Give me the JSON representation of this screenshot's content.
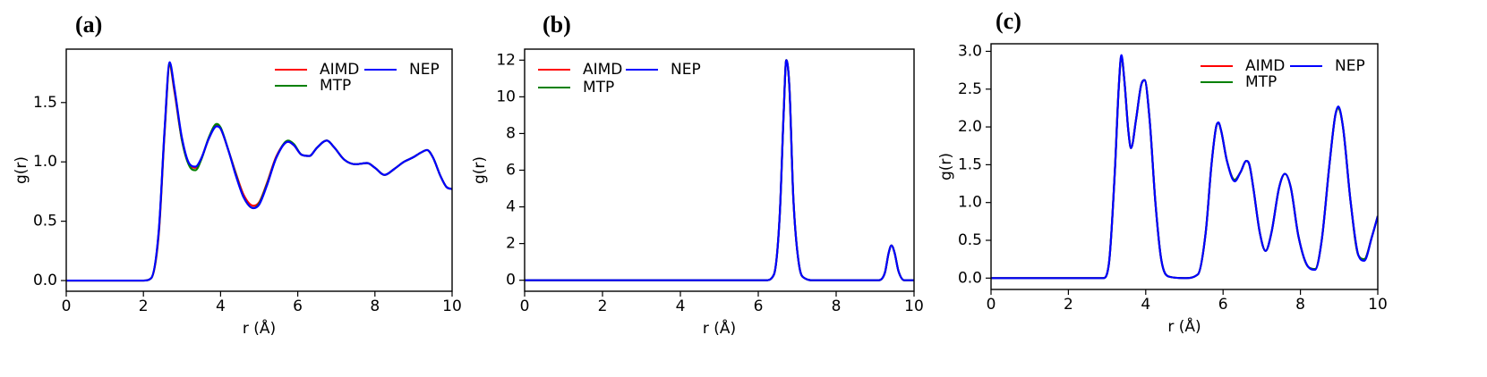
{
  "chart_data": [
    {
      "type": "line",
      "panel_label": "(a)",
      "xlabel": "r (Å)",
      "ylabel": "g(r)",
      "xlim": [
        0,
        10
      ],
      "ylim": [
        -0.09,
        1.95
      ],
      "xticks": [
        0,
        2,
        4,
        6,
        8,
        10
      ],
      "xtick_labels": [
        "0",
        "2",
        "4",
        "6",
        "8",
        "10"
      ],
      "yticks": [
        0.0,
        0.5,
        1.0,
        1.5
      ],
      "ytick_labels": [
        "0.0",
        "0.5",
        "1.0",
        "1.5"
      ],
      "grid": false,
      "legend_position": "top-right",
      "series": [
        {
          "name": "AIMD",
          "color": "#ff0000",
          "x": [
            0,
            2.0,
            2.2,
            2.4,
            2.55,
            2.68,
            2.8,
            3.0,
            3.2,
            3.35,
            3.5,
            3.7,
            3.9,
            4.0,
            4.2,
            4.4,
            4.6,
            4.85,
            5.0,
            5.2,
            5.45,
            5.75,
            5.9,
            6.1,
            6.3,
            6.5,
            6.75,
            6.95,
            7.2,
            7.5,
            7.8,
            8.0,
            8.25,
            8.5,
            8.75,
            9.0,
            9.2,
            9.35,
            9.5,
            9.7,
            9.85,
            10.0
          ],
          "y": [
            0,
            0.0,
            0.02,
            0.4,
            1.25,
            1.81,
            1.6,
            1.18,
            0.97,
            0.95,
            1.03,
            1.2,
            1.31,
            1.28,
            1.1,
            0.9,
            0.72,
            0.63,
            0.66,
            0.82,
            1.05,
            1.17,
            1.14,
            1.06,
            1.05,
            1.12,
            1.18,
            1.12,
            1.02,
            0.98,
            0.99,
            0.95,
            0.89,
            0.94,
            1.0,
            1.04,
            1.08,
            1.1,
            1.04,
            0.88,
            0.79,
            0.77
          ]
        },
        {
          "name": "MTP",
          "color": "#008000",
          "x": [
            0,
            2.0,
            2.2,
            2.4,
            2.55,
            2.68,
            2.8,
            3.0,
            3.2,
            3.35,
            3.5,
            3.7,
            3.9,
            4.0,
            4.2,
            4.4,
            4.6,
            4.85,
            5.0,
            5.2,
            5.45,
            5.75,
            5.9,
            6.1,
            6.3,
            6.5,
            6.75,
            6.95,
            7.2,
            7.5,
            7.8,
            8.0,
            8.25,
            8.5,
            8.75,
            9.0,
            9.2,
            9.35,
            9.5,
            9.7,
            9.85,
            10.0
          ],
          "y": [
            0,
            0.0,
            0.02,
            0.42,
            1.27,
            1.82,
            1.62,
            1.18,
            0.96,
            0.93,
            1.02,
            1.21,
            1.32,
            1.29,
            1.1,
            0.89,
            0.7,
            0.61,
            0.65,
            0.81,
            1.04,
            1.18,
            1.15,
            1.06,
            1.05,
            1.12,
            1.18,
            1.12,
            1.02,
            0.98,
            0.99,
            0.95,
            0.89,
            0.94,
            1.0,
            1.04,
            1.08,
            1.1,
            1.04,
            0.88,
            0.79,
            0.77
          ]
        },
        {
          "name": "NEP",
          "color": "#0000ff",
          "x": [
            0,
            2.0,
            2.2,
            2.4,
            2.55,
            2.68,
            2.8,
            3.0,
            3.2,
            3.35,
            3.5,
            3.7,
            3.9,
            4.0,
            4.2,
            4.4,
            4.6,
            4.85,
            5.0,
            5.2,
            5.45,
            5.75,
            5.9,
            6.1,
            6.3,
            6.5,
            6.75,
            6.95,
            7.2,
            7.5,
            7.8,
            8.0,
            8.25,
            8.5,
            8.75,
            9.0,
            9.2,
            9.35,
            9.5,
            9.7,
            9.85,
            10.0
          ],
          "y": [
            0,
            0.0,
            0.02,
            0.43,
            1.28,
            1.84,
            1.63,
            1.2,
            0.98,
            0.96,
            1.03,
            1.2,
            1.3,
            1.28,
            1.1,
            0.88,
            0.7,
            0.61,
            0.64,
            0.8,
            1.04,
            1.17,
            1.14,
            1.06,
            1.05,
            1.12,
            1.18,
            1.12,
            1.02,
            0.98,
            0.99,
            0.95,
            0.89,
            0.94,
            1.0,
            1.04,
            1.08,
            1.1,
            1.04,
            0.88,
            0.79,
            0.77
          ]
        }
      ]
    },
    {
      "type": "line",
      "panel_label": "(b)",
      "xlabel": "r (Å)",
      "ylabel": "g(r)",
      "xlim": [
        0,
        10
      ],
      "ylim": [
        -0.6,
        12.6
      ],
      "xticks": [
        0,
        2,
        4,
        6,
        8,
        10
      ],
      "xtick_labels": [
        "0",
        "2",
        "4",
        "6",
        "8",
        "10"
      ],
      "yticks": [
        0,
        2,
        4,
        6,
        8,
        10,
        12
      ],
      "ytick_labels": [
        "0",
        "2",
        "4",
        "6",
        "8",
        "10",
        "12"
      ],
      "grid": false,
      "legend_position": "top-left",
      "series": [
        {
          "name": "AIMD",
          "color": "#ff0000",
          "x": [
            0,
            6.2,
            6.4,
            6.55,
            6.65,
            6.72,
            6.8,
            6.9,
            7.05,
            7.2,
            7.4,
            9.1,
            9.25,
            9.35,
            9.42,
            9.5,
            9.6,
            9.75,
            10.0
          ],
          "y": [
            0,
            0.0,
            0.3,
            3.5,
            9.0,
            12.0,
            10.5,
            4.5,
            0.8,
            0.1,
            0.0,
            0.0,
            0.4,
            1.5,
            1.9,
            1.5,
            0.5,
            0.0,
            0.0
          ]
        },
        {
          "name": "MTP",
          "color": "#008000",
          "x": [
            0,
            6.2,
            6.4,
            6.55,
            6.65,
            6.72,
            6.8,
            6.9,
            7.05,
            7.2,
            7.4,
            9.1,
            9.25,
            9.35,
            9.42,
            9.5,
            9.6,
            9.75,
            10.0
          ],
          "y": [
            0,
            0.0,
            0.3,
            3.5,
            9.0,
            12.0,
            10.5,
            4.5,
            0.8,
            0.1,
            0.0,
            0.0,
            0.4,
            1.5,
            1.9,
            1.5,
            0.5,
            0.0,
            0.0
          ]
        },
        {
          "name": "NEP",
          "color": "#0000ff",
          "x": [
            0,
            6.2,
            6.4,
            6.55,
            6.65,
            6.72,
            6.8,
            6.9,
            7.05,
            7.2,
            7.4,
            9.1,
            9.25,
            9.35,
            9.42,
            9.5,
            9.6,
            9.75,
            10.0
          ],
          "y": [
            0,
            0.0,
            0.3,
            3.5,
            9.0,
            12.0,
            10.5,
            4.5,
            0.8,
            0.1,
            0.0,
            0.0,
            0.4,
            1.5,
            1.9,
            1.5,
            0.5,
            0.0,
            0.0
          ]
        }
      ]
    },
    {
      "type": "line",
      "panel_label": "(c)",
      "xlabel": "r (Å)",
      "ylabel": "g(r)",
      "xlim": [
        0,
        10
      ],
      "ylim": [
        -0.15,
        3.1
      ],
      "xticks": [
        0,
        2,
        4,
        6,
        8,
        10
      ],
      "xtick_labels": [
        "0",
        "2",
        "4",
        "6",
        "8",
        "10"
      ],
      "yticks": [
        0.0,
        0.5,
        1.0,
        1.5,
        2.0,
        2.5,
        3.0
      ],
      "ytick_labels": [
        "0.0",
        "0.5",
        "1.0",
        "1.5",
        "2.0",
        "2.5",
        "3.0"
      ],
      "grid": false,
      "legend_position": "top-right",
      "series": [
        {
          "name": "AIMD",
          "color": "#ff0000",
          "x": [
            0,
            2.9,
            3.05,
            3.2,
            3.3,
            3.37,
            3.45,
            3.55,
            3.62,
            3.75,
            3.88,
            3.97,
            4.1,
            4.25,
            4.4,
            4.6,
            5.0,
            5.35,
            5.55,
            5.7,
            5.82,
            5.88,
            5.95,
            6.1,
            6.3,
            6.45,
            6.6,
            6.68,
            6.78,
            6.95,
            7.1,
            7.25,
            7.45,
            7.6,
            7.75,
            7.95,
            8.2,
            8.38,
            8.55,
            8.75,
            8.9,
            8.98,
            9.1,
            9.3,
            9.5,
            9.65,
            9.85,
            10.0
          ],
          "y": [
            0,
            0.0,
            0.2,
            1.4,
            2.5,
            2.93,
            2.6,
            1.95,
            1.72,
            2.1,
            2.55,
            2.62,
            2.1,
            1.0,
            0.25,
            0.02,
            0.0,
            0.05,
            0.6,
            1.5,
            2.0,
            2.05,
            1.95,
            1.55,
            1.3,
            1.4,
            1.55,
            1.5,
            1.2,
            0.6,
            0.36,
            0.6,
            1.2,
            1.38,
            1.2,
            0.55,
            0.15,
            0.12,
            0.5,
            1.5,
            2.15,
            2.25,
            2.0,
            1.0,
            0.3,
            0.25,
            0.55,
            0.82
          ]
        },
        {
          "name": "MTP",
          "color": "#008000",
          "x": [
            0,
            2.9,
            3.05,
            3.2,
            3.3,
            3.37,
            3.45,
            3.55,
            3.62,
            3.75,
            3.88,
            3.97,
            4.1,
            4.25,
            4.4,
            4.6,
            5.0,
            5.35,
            5.55,
            5.7,
            5.82,
            5.88,
            5.95,
            6.1,
            6.3,
            6.45,
            6.6,
            6.68,
            6.78,
            6.95,
            7.1,
            7.25,
            7.45,
            7.6,
            7.75,
            7.95,
            8.2,
            8.38,
            8.55,
            8.75,
            8.9,
            8.98,
            9.1,
            9.3,
            9.5,
            9.65,
            9.85,
            10.0
          ],
          "y": [
            0,
            0.0,
            0.2,
            1.4,
            2.5,
            2.93,
            2.6,
            1.95,
            1.72,
            2.1,
            2.55,
            2.62,
            2.1,
            1.0,
            0.25,
            0.02,
            0.0,
            0.05,
            0.6,
            1.5,
            2.0,
            2.05,
            1.95,
            1.55,
            1.3,
            1.4,
            1.55,
            1.5,
            1.2,
            0.6,
            0.36,
            0.6,
            1.2,
            1.38,
            1.2,
            0.55,
            0.15,
            0.12,
            0.5,
            1.5,
            2.15,
            2.25,
            2.0,
            1.0,
            0.3,
            0.25,
            0.55,
            0.82
          ]
        },
        {
          "name": "NEP",
          "color": "#0000ff",
          "x": [
            0,
            2.9,
            3.05,
            3.2,
            3.3,
            3.37,
            3.45,
            3.55,
            3.62,
            3.75,
            3.88,
            3.97,
            4.1,
            4.25,
            4.4,
            4.6,
            5.0,
            5.35,
            5.55,
            5.7,
            5.82,
            5.88,
            5.95,
            6.1,
            6.3,
            6.45,
            6.6,
            6.68,
            6.78,
            6.95,
            7.1,
            7.25,
            7.45,
            7.6,
            7.75,
            7.95,
            8.2,
            8.38,
            8.55,
            8.75,
            8.9,
            8.98,
            9.1,
            9.3,
            9.5,
            9.65,
            9.85,
            10.0
          ],
          "y": [
            0,
            0.0,
            0.2,
            1.4,
            2.5,
            2.95,
            2.6,
            1.95,
            1.72,
            2.1,
            2.55,
            2.62,
            2.1,
            1.0,
            0.25,
            0.02,
            0.0,
            0.05,
            0.6,
            1.5,
            2.0,
            2.06,
            1.95,
            1.55,
            1.28,
            1.4,
            1.55,
            1.5,
            1.2,
            0.6,
            0.36,
            0.6,
            1.2,
            1.38,
            1.2,
            0.55,
            0.15,
            0.11,
            0.5,
            1.5,
            2.15,
            2.27,
            2.0,
            1.0,
            0.3,
            0.23,
            0.55,
            0.82
          ]
        }
      ]
    }
  ]
}
